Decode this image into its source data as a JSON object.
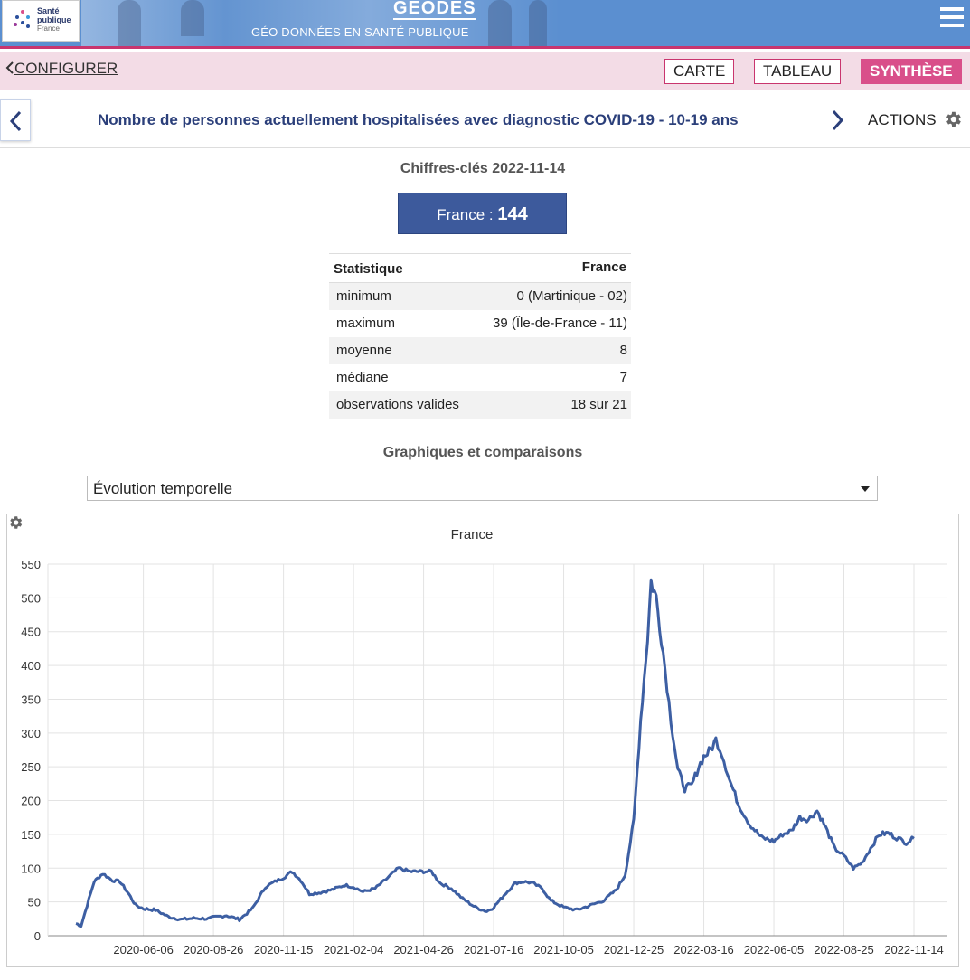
{
  "header": {
    "logo_line1": "Santé",
    "logo_line2": "publique",
    "logo_line3": "France",
    "app_title": "GÉODES",
    "app_subtitle": "GÉO DONNÉES EN SANTÉ PUBLIQUE",
    "menu_icon": "hamburger-icon"
  },
  "toolbar": {
    "configurer_label": "CONFIGURER",
    "tabs": [
      {
        "label": "CARTE",
        "active": false
      },
      {
        "label": "TABLEAU",
        "active": false
      },
      {
        "label": "SYNTHÈSE",
        "active": true
      }
    ]
  },
  "title_row": {
    "indicator_title": "Nombre de personnes actuellement hospitalisées avec diagnostic COVID-19 - 10-19 ans",
    "actions_label": "ACTIONS"
  },
  "key_figures": {
    "title": "Chiffres-clés 2022-11-14",
    "france_label": "France : ",
    "france_value": "144",
    "table": {
      "headers": [
        "Statistique",
        "France"
      ],
      "rows": [
        [
          "minimum",
          "0 (Martinique - 02)"
        ],
        [
          "maximum",
          "39 (Île-de-France - 11)"
        ],
        [
          "moyenne",
          "8"
        ],
        [
          "médiane",
          "7"
        ],
        [
          "observations valides",
          "18 sur 21"
        ]
      ]
    }
  },
  "graphs": {
    "title": "Graphiques et comparaisons",
    "select_value": "Évolution temporelle"
  },
  "colors": {
    "line": "#3d5fa3",
    "accent_pink": "#d94f8a",
    "france_box": "#3d5a9c"
  },
  "chart_data": {
    "type": "line",
    "title": "France",
    "xlabel": "",
    "ylabel": "",
    "ylim": [
      0,
      550
    ],
    "yticks": [
      0,
      50,
      100,
      150,
      200,
      250,
      300,
      350,
      400,
      450,
      500,
      550
    ],
    "xticks": [
      "2020-06-06",
      "2020-08-26",
      "2020-11-15",
      "2021-02-04",
      "2021-04-26",
      "2021-07-16",
      "2021-10-05",
      "2021-12-25",
      "2022-03-16",
      "2022-06-05",
      "2022-08-25",
      "2022-11-14"
    ],
    "grid": true,
    "series": [
      {
        "name": "France",
        "points": [
          [
            "2020-03-20",
            18
          ],
          [
            "2020-03-26",
            15
          ],
          [
            "2020-04-02",
            45
          ],
          [
            "2020-04-10",
            80
          ],
          [
            "2020-04-20",
            92
          ],
          [
            "2020-05-01",
            82
          ],
          [
            "2020-05-10",
            80
          ],
          [
            "2020-05-20",
            62
          ],
          [
            "2020-05-28",
            45
          ],
          [
            "2020-06-06",
            40
          ],
          [
            "2020-06-20",
            38
          ],
          [
            "2020-07-05",
            28
          ],
          [
            "2020-07-20",
            24
          ],
          [
            "2020-08-05",
            26
          ],
          [
            "2020-08-20",
            25
          ],
          [
            "2020-08-26",
            27
          ],
          [
            "2020-09-10",
            30
          ],
          [
            "2020-09-25",
            24
          ],
          [
            "2020-10-10",
            40
          ],
          [
            "2020-10-25",
            72
          ],
          [
            "2020-11-05",
            80
          ],
          [
            "2020-11-15",
            86
          ],
          [
            "2020-11-25",
            95
          ],
          [
            "2020-12-05",
            82
          ],
          [
            "2020-12-15",
            62
          ],
          [
            "2020-12-28",
            64
          ],
          [
            "2021-01-10",
            68
          ],
          [
            "2021-01-25",
            75
          ],
          [
            "2021-02-04",
            72
          ],
          [
            "2021-02-15",
            65
          ],
          [
            "2021-03-01",
            70
          ],
          [
            "2021-03-15",
            85
          ],
          [
            "2021-03-28",
            100
          ],
          [
            "2021-04-10",
            95
          ],
          [
            "2021-04-26",
            95
          ],
          [
            "2021-05-05",
            95
          ],
          [
            "2021-05-15",
            78
          ],
          [
            "2021-05-28",
            70
          ],
          [
            "2021-06-10",
            55
          ],
          [
            "2021-06-25",
            42
          ],
          [
            "2021-07-08",
            36
          ],
          [
            "2021-07-16",
            42
          ],
          [
            "2021-07-28",
            60
          ],
          [
            "2021-08-10",
            78
          ],
          [
            "2021-08-20",
            80
          ],
          [
            "2021-08-30",
            78
          ],
          [
            "2021-09-10",
            70
          ],
          [
            "2021-09-20",
            52
          ],
          [
            "2021-10-05",
            42
          ],
          [
            "2021-10-20",
            38
          ],
          [
            "2021-11-05",
            45
          ],
          [
            "2021-11-20",
            52
          ],
          [
            "2021-12-05",
            68
          ],
          [
            "2021-12-15",
            90
          ],
          [
            "2021-12-25",
            170
          ],
          [
            "2022-01-02",
            320
          ],
          [
            "2022-01-10",
            440
          ],
          [
            "2022-01-14",
            525
          ],
          [
            "2022-01-20",
            500
          ],
          [
            "2022-01-28",
            420
          ],
          [
            "2022-02-06",
            320
          ],
          [
            "2022-02-14",
            245
          ],
          [
            "2022-02-22",
            218
          ],
          [
            "2022-03-02",
            222
          ],
          [
            "2022-03-10",
            250
          ],
          [
            "2022-03-16",
            265
          ],
          [
            "2022-03-24",
            275
          ],
          [
            "2022-03-30",
            290
          ],
          [
            "2022-04-06",
            270
          ],
          [
            "2022-04-15",
            230
          ],
          [
            "2022-04-25",
            195
          ],
          [
            "2022-05-08",
            165
          ],
          [
            "2022-05-22",
            145
          ],
          [
            "2022-06-05",
            140
          ],
          [
            "2022-06-15",
            150
          ],
          [
            "2022-06-25",
            155
          ],
          [
            "2022-07-05",
            175
          ],
          [
            "2022-07-15",
            172
          ],
          [
            "2022-07-25",
            185
          ],
          [
            "2022-08-04",
            160
          ],
          [
            "2022-08-14",
            130
          ],
          [
            "2022-08-25",
            118
          ],
          [
            "2022-09-05",
            100
          ],
          [
            "2022-09-15",
            108
          ],
          [
            "2022-09-25",
            130
          ],
          [
            "2022-10-05",
            150
          ],
          [
            "2022-10-15",
            152
          ],
          [
            "2022-10-25",
            145
          ],
          [
            "2022-11-05",
            138
          ],
          [
            "2022-11-14",
            144
          ]
        ]
      }
    ]
  }
}
